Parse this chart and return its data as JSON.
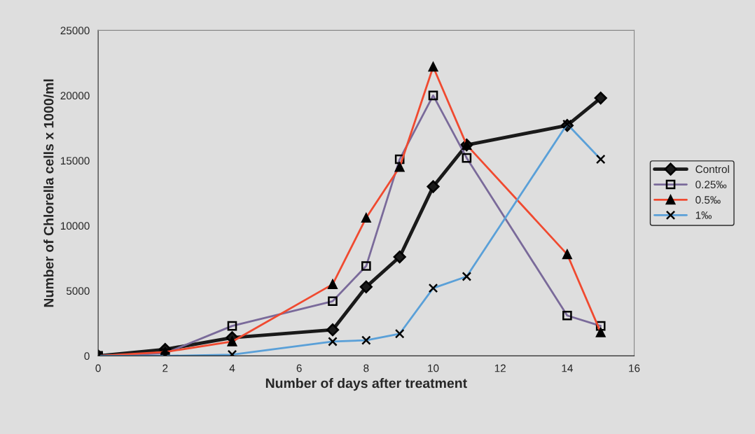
{
  "chart_data": {
    "type": "line",
    "xlabel": "Number of days after treatment",
    "ylabel": "Number of Chlorella cells x 1000/ml",
    "x": [
      0,
      2,
      4,
      7,
      8,
      9,
      10,
      11,
      14,
      15
    ],
    "xlim": [
      0,
      16
    ],
    "xticks": [
      0,
      2,
      4,
      6,
      8,
      10,
      12,
      14,
      16
    ],
    "ylim": [
      0,
      25000
    ],
    "yticks": [
      0,
      5000,
      10000,
      15000,
      20000,
      25000
    ],
    "grid": false,
    "legend": "right",
    "series": [
      {
        "name": "Control",
        "color": "#1a1a1a",
        "marker": "diamond",
        "values": [
          0,
          500,
          1400,
          2000,
          5300,
          7600,
          13000,
          16200,
          17700,
          19800
        ]
      },
      {
        "name": "0.25‰",
        "color": "#7a6a9a",
        "marker": "square",
        "values": [
          0,
          200,
          2300,
          4200,
          6900,
          15100,
          20000,
          15200,
          3100,
          2300
        ]
      },
      {
        "name": "0.5‰",
        "color": "#f04a30",
        "marker": "triangle",
        "values": [
          0,
          300,
          1100,
          5500,
          10600,
          14500,
          22200,
          16200,
          7800,
          1800
        ]
      },
      {
        "name": "1‰",
        "color": "#5aa0d8",
        "marker": "cross",
        "values": [
          0,
          0,
          100,
          1100,
          1200,
          1700,
          5200,
          6100,
          17800,
          15100
        ]
      }
    ]
  }
}
